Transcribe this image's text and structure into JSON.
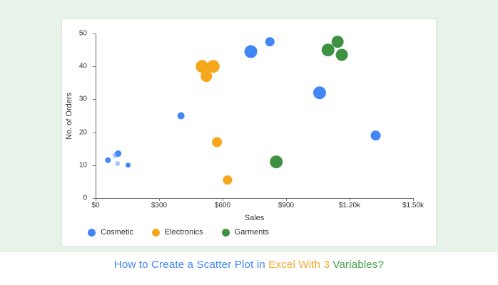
{
  "title": {
    "parts": [
      {
        "text": "How to Create a Scatter Plot in ",
        "color": "#4285f4"
      },
      {
        "text": "Excel With 3 ",
        "color": "#f5a623"
      },
      {
        "text": "Variables?",
        "color": "#43a047"
      }
    ]
  },
  "chart_data": {
    "type": "scatter",
    "title": "",
    "xlabel": "Sales",
    "ylabel": "No. of Orders",
    "xlim": [
      0,
      1500
    ],
    "ylim": [
      0,
      50
    ],
    "grid": false,
    "legend_position": "bottom-left",
    "xticks": [
      {
        "v": 0,
        "label": "$0"
      },
      {
        "v": 300,
        "label": "$300"
      },
      {
        "v": 600,
        "label": "$600"
      },
      {
        "v": 900,
        "label": "$900"
      },
      {
        "v": 1200,
        "label": "$1.20k"
      },
      {
        "v": 1500,
        "label": "$1.50k"
      }
    ],
    "yticks": [
      {
        "v": 0,
        "label": "0"
      },
      {
        "v": 10,
        "label": "10"
      },
      {
        "v": 20,
        "label": "20"
      },
      {
        "v": 30,
        "label": "30"
      },
      {
        "v": 40,
        "label": "40"
      },
      {
        "v": 50,
        "label": "50"
      }
    ],
    "series": [
      {
        "name": "Cosmetic",
        "color": "#4285f4",
        "points": [
          {
            "x": 55,
            "y": 11.5,
            "r": 4
          },
          {
            "x": 90,
            "y": 13,
            "r": 4,
            "a": 0.45
          },
          {
            "x": 103,
            "y": 13.5,
            "r": 4.5
          },
          {
            "x": 100,
            "y": 10.5,
            "r": 3.5,
            "a": 0.45
          },
          {
            "x": 150,
            "y": 10,
            "r": 3.5
          },
          {
            "x": 400,
            "y": 25,
            "r": 5
          },
          {
            "x": 730,
            "y": 44.5,
            "r": 9
          },
          {
            "x": 820,
            "y": 47.5,
            "r": 6.5
          },
          {
            "x": 1055,
            "y": 32,
            "r": 9
          },
          {
            "x": 1320,
            "y": 19,
            "r": 7
          }
        ]
      },
      {
        "name": "Electronics",
        "color": "#f6a71b",
        "points": [
          {
            "x": 500,
            "y": 40,
            "r": 9
          },
          {
            "x": 552,
            "y": 40,
            "r": 9
          },
          {
            "x": 520,
            "y": 37,
            "r": 8
          },
          {
            "x": 570,
            "y": 17,
            "r": 7
          },
          {
            "x": 620,
            "y": 5.5,
            "r": 6.5
          }
        ]
      },
      {
        "name": "Garments",
        "color": "#3f9142",
        "points": [
          {
            "x": 850,
            "y": 11,
            "r": 9
          },
          {
            "x": 1095,
            "y": 45,
            "r": 9
          },
          {
            "x": 1140,
            "y": 47.5,
            "r": 8.5
          },
          {
            "x": 1160,
            "y": 43.5,
            "r": 8.5
          }
        ]
      }
    ]
  },
  "colors": {
    "page_background": "#e7f2e8",
    "card_background": "#ffffff",
    "axis": "#666666",
    "tick_text": "#333333"
  }
}
